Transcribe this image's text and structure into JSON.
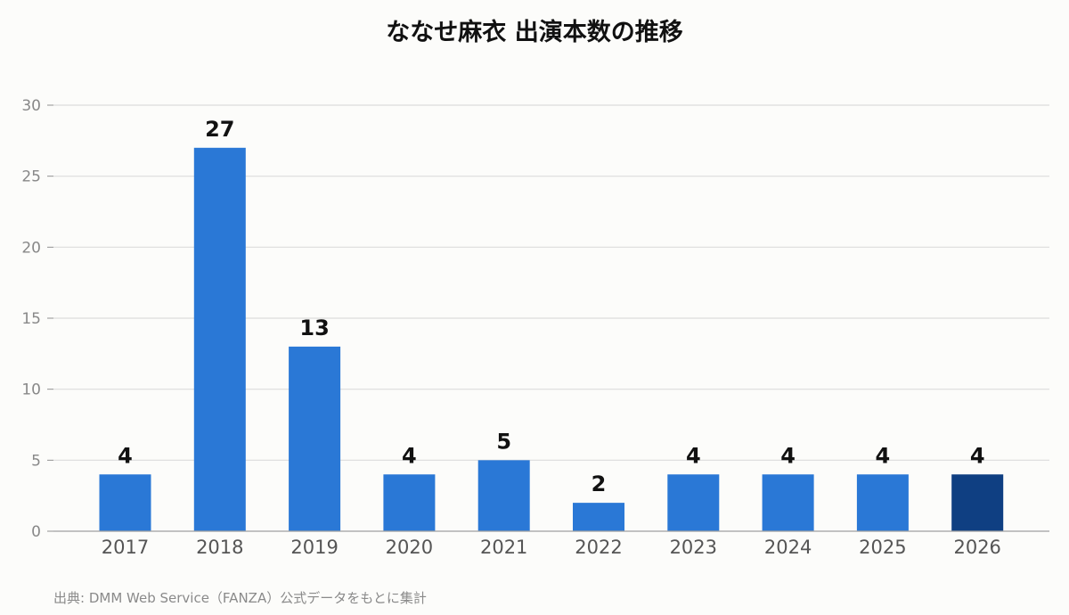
{
  "title": "ななせ麻衣 出演本数の推移",
  "source": "出典: DMM Web Service（FANZA）公式データをもとに集計",
  "colors": {
    "bar": "#2a78d6",
    "bar_highlight": "#0f3f82"
  },
  "chart_data": {
    "type": "bar",
    "title": "ななせ麻衣 出演本数の推移",
    "categories": [
      "2017",
      "2018",
      "2019",
      "2020",
      "2021",
      "2022",
      "2023",
      "2024",
      "2025",
      "2026"
    ],
    "values": [
      4,
      27,
      13,
      4,
      5,
      2,
      4,
      4,
      4,
      4
    ],
    "highlight_index": 9,
    "xlabel": "",
    "ylabel": "",
    "ylim": [
      0,
      30
    ],
    "yticks": [
      0,
      5,
      10,
      15,
      20,
      25,
      30
    ],
    "grid": true,
    "data_labels": true
  }
}
